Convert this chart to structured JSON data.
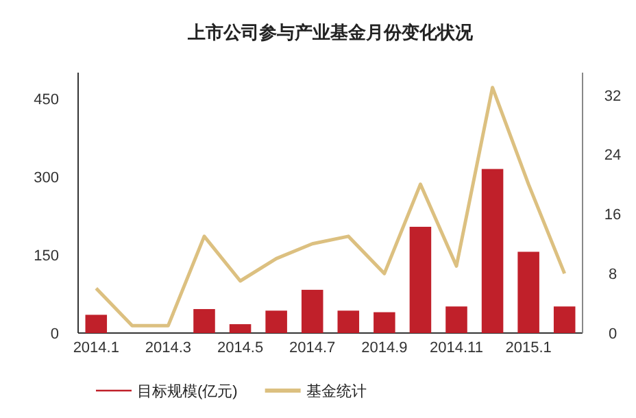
{
  "chart_data": {
    "type": "bar",
    "title": "上市公司参与产业基金月份变化状况",
    "categories": [
      "2014.1",
      null,
      "2014.3",
      null,
      "2014.5",
      null,
      "2014.7",
      null,
      "2014.9",
      null,
      "2014.11",
      null,
      "2015.1",
      null
    ],
    "series": [
      {
        "name": "目标规模(亿元)",
        "color": "#c0202a",
        "values": [
          35,
          0,
          0,
          46,
          17,
          43,
          83,
          43,
          40,
          204,
          51,
          315,
          156,
          51
        ]
      },
      {
        "name": "基金统计",
        "type": "line",
        "axis": "y2",
        "color": "#dcc080",
        "values": [
          6,
          1,
          1,
          13,
          7,
          10,
          12,
          13,
          8,
          20,
          9,
          33,
          20,
          8
        ]
      }
    ],
    "ylim": [
      0,
      500
    ],
    "yticks": [
      0,
      150,
      300,
      450
    ],
    "y2lim": [
      0,
      35
    ],
    "y2ticks": [
      0,
      8,
      16,
      24,
      32
    ],
    "legend": "bottom"
  }
}
